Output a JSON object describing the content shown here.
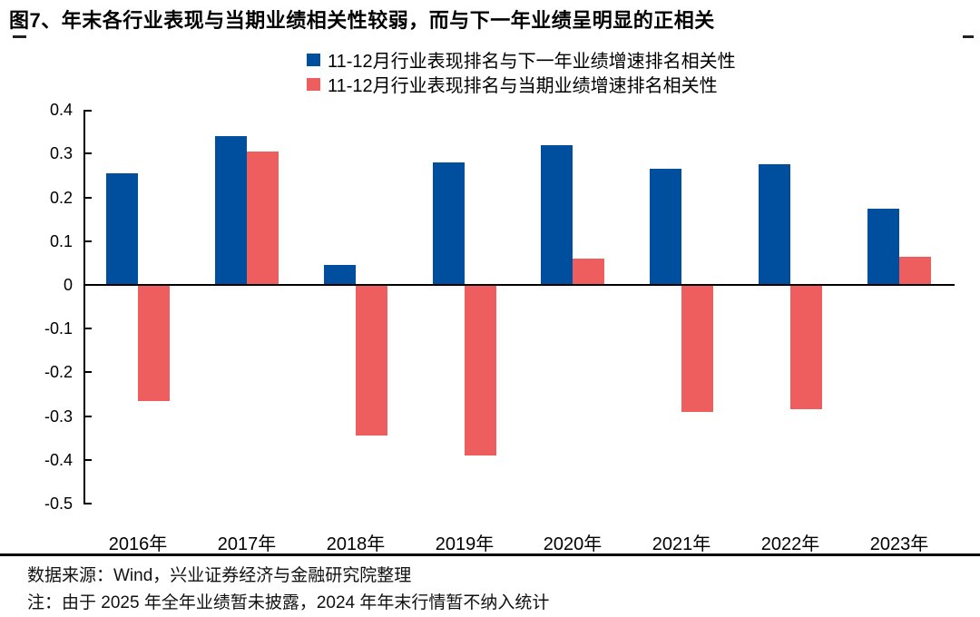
{
  "title": "图7、年末各行业表现与当期业绩相关性较弱，而与下一年业绩呈明显的正相关",
  "legend": [
    {
      "label": "11-12月行业表现排名与下一年业绩增速排名相关性",
      "color": "#004F9E"
    },
    {
      "label": "11-12月行业表现排名与当期业绩增速排名相关性",
      "color": "#EF5E5E"
    }
  ],
  "colors": {
    "bar_blue": "#004F9E",
    "bar_red": "#EF5E5E",
    "axis": "#000000",
    "rule": "#000000"
  },
  "chart_data": {
    "type": "bar",
    "categories": [
      "2016年",
      "2017年",
      "2018年",
      "2019年",
      "2020年",
      "2021年",
      "2022年",
      "2023年"
    ],
    "series": [
      {
        "key": "next-year-corr",
        "name": "11-12月行业表现排名与下一年业绩增速排名相关性",
        "color": "#004F9E",
        "values": [
          0.255,
          0.34,
          0.045,
          0.28,
          0.32,
          0.265,
          0.275,
          0.175
        ]
      },
      {
        "key": "current-year-corr",
        "name": "11-12月行业表现排名与当期业绩增速排名相关性",
        "color": "#EF5E5E",
        "values": [
          -0.265,
          0.305,
          -0.345,
          -0.39,
          0.06,
          -0.29,
          -0.285,
          0.065
        ]
      }
    ],
    "ylim": [
      -0.5,
      0.4
    ],
    "yticks": [
      {
        "value": 0.4,
        "label": "0.4"
      },
      {
        "value": 0.3,
        "label": "0.3"
      },
      {
        "value": 0.2,
        "label": "0.2"
      },
      {
        "value": 0.1,
        "label": "0.1"
      },
      {
        "value": 0.0,
        "label": "0"
      },
      {
        "value": -0.1,
        "label": "-0.1"
      },
      {
        "value": -0.2,
        "label": "-0.2"
      },
      {
        "value": -0.3,
        "label": "-0.3"
      },
      {
        "value": -0.4,
        "label": "-0.4"
      },
      {
        "value": -0.5,
        "label": "-0.5"
      }
    ],
    "grid": false,
    "legend_position": "top-center",
    "baseline": 0
  },
  "footer": {
    "source": "数据来源：Wind，兴业证券经济与金融研究院整理",
    "note": "注：由于 2025 年全年业绩暂未披露，2024 年年末行情暂不纳入统计"
  }
}
